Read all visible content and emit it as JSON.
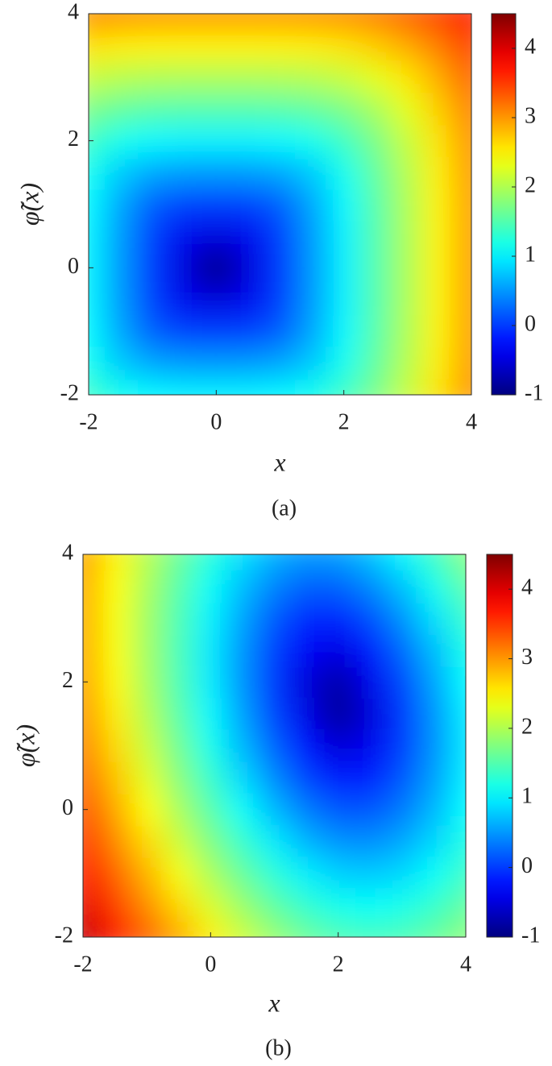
{
  "chart_data": [
    {
      "type": "contour",
      "xlabel": "x",
      "ylabel": "φ̃(x)",
      "caption": "(a)",
      "colormap": "jet",
      "x": [
        -2,
        -1.5,
        -1,
        -0.5,
        0,
        0.5,
        1,
        1.5,
        2,
        2.5,
        3,
        3.5,
        4
      ],
      "y": [
        -2,
        -1.5,
        -1,
        -0.5,
        0,
        0.5,
        1,
        1.5,
        2,
        2.5,
        3,
        3.5,
        4
      ],
      "z": [
        [
          1.38,
          1.14,
          1.03,
          1,
          1,
          1,
          1.03,
          1.14,
          1.38,
          1.72,
          2.14,
          2.59,
          3.06
        ],
        [
          1.14,
          0.78,
          0.57,
          0.51,
          0.5,
          0.51,
          0.57,
          0.78,
          1.14,
          1.58,
          2.05,
          2.53,
          3.02
        ],
        [
          1.03,
          0.57,
          0.19,
          0.02,
          0,
          0.02,
          0.19,
          0.57,
          1.03,
          1.52,
          2.01,
          2.51,
          3
        ],
        [
          1,
          0.51,
          0.02,
          -0.41,
          -0.5,
          -0.41,
          0.02,
          0.51,
          1,
          1.5,
          2,
          2.5,
          3
        ],
        [
          1,
          0.5,
          0,
          -0.5,
          -1,
          -0.5,
          0,
          0.5,
          1,
          1.5,
          2,
          2.5,
          3
        ],
        [
          1,
          0.51,
          0.02,
          -0.41,
          -0.5,
          -0.41,
          0.02,
          0.51,
          1,
          1.5,
          2,
          2.5,
          3
        ],
        [
          1.03,
          0.57,
          0.19,
          0.02,
          0,
          0.02,
          0.19,
          0.57,
          1.03,
          1.52,
          2.01,
          2.51,
          3
        ],
        [
          1.14,
          0.78,
          0.57,
          0.51,
          0.5,
          0.51,
          0.57,
          0.78,
          1.14,
          1.58,
          2.05,
          2.53,
          3.02
        ],
        [
          1.38,
          1.14,
          1.03,
          1,
          1,
          1,
          1.03,
          1.14,
          1.38,
          1.72,
          2.14,
          2.59,
          3.06
        ],
        [
          1.72,
          1.58,
          1.52,
          1.5,
          1.5,
          1.5,
          1.52,
          1.58,
          1.72,
          1.97,
          2.31,
          2.71,
          3.15
        ],
        [
          2.14,
          2.05,
          2.01,
          2,
          2,
          2,
          2.01,
          2.05,
          2.14,
          2.31,
          2.57,
          2.9,
          3.29
        ],
        [
          2.59,
          2.53,
          2.51,
          2.5,
          2.5,
          2.5,
          2.51,
          2.53,
          2.59,
          2.71,
          2.9,
          3.16,
          3.49
        ],
        [
          3.06,
          3.02,
          3,
          3,
          3,
          3,
          3,
          3.02,
          3.06,
          3.15,
          3.29,
          3.49,
          3.76
        ]
      ],
      "xlim": [
        -2,
        4
      ],
      "ylim": [
        -2,
        4
      ],
      "xticks": [
        -2,
        0,
        2,
        4
      ],
      "yticks": [
        -2,
        0,
        2,
        4
      ],
      "clim": [
        -1,
        4.5
      ],
      "cticks": [
        -1,
        0,
        1,
        2,
        3,
        4
      ]
    },
    {
      "type": "contour",
      "xlabel": "x",
      "ylabel": "φ̃(x)",
      "caption": "(b)",
      "colormap": "jet",
      "x": [
        -2,
        -1.5,
        -1,
        -0.5,
        0,
        0.5,
        1,
        1.5,
        2,
        2.5,
        3,
        3.5,
        4
      ],
      "y": [
        -2,
        -1.5,
        -1,
        -0.5,
        0,
        0.5,
        1,
        1.5,
        2,
        2.5,
        3,
        3.5,
        4
      ],
      "z": [
        [
          4.16,
          3.72,
          3.3,
          2.9,
          2.52,
          2.17,
          1.88,
          1.64,
          1.48,
          1.42,
          1.46,
          1.6,
          1.82
        ],
        [
          3.94,
          3.5,
          3.06,
          2.64,
          2.24,
          1.88,
          1.56,
          1.31,
          1.15,
          1.09,
          1.16,
          1.33,
          1.59
        ],
        [
          3.75,
          3.29,
          2.84,
          2.4,
          1.98,
          1.6,
          1.26,
          0.98,
          0.81,
          0.77,
          0.86,
          1.08,
          1.38
        ],
        [
          3.56,
          3.09,
          2.63,
          2.17,
          1.74,
          1.33,
          0.96,
          0.66,
          0.48,
          0.45,
          0.59,
          0.85,
          1.2
        ],
        [
          3.4,
          2.92,
          2.44,
          1.97,
          1.51,
          1.08,
          0.68,
          0.35,
          0.14,
          0.14,
          0.34,
          0.67,
          1.07
        ],
        [
          3.25,
          2.76,
          2.28,
          1.79,
          1.32,
          0.85,
          0.42,
          0.04,
          -0.19,
          -0.15,
          0.14,
          0.54,
          0.98
        ],
        [
          3.13,
          2.63,
          2.14,
          1.65,
          1.15,
          0.67,
          0.2,
          -0.24,
          -0.53,
          -0.4,
          0.0,
          0.47,
          0.95
        ],
        [
          3.03,
          2.53,
          2.03,
          1.53,
          1.03,
          0.54,
          0.04,
          -0.45,
          -0.87,
          -0.51,
          -0.02,
          0.48,
          0.97
        ],
        [
          2.96,
          2.46,
          1.96,
          1.46,
          0.96,
          0.47,
          -0.03,
          -0.51,
          -0.8,
          -0.42,
          0.06,
          0.56,
          1.05
        ],
        [
          2.92,
          2.42,
          1.93,
          1.44,
          0.95,
          0.48,
          0.02,
          -0.35,
          -0.46,
          -0.19,
          0.24,
          0.7,
          1.18
        ],
        [
          2.9,
          2.41,
          1.93,
          1.46,
          1.0,
          0.56,
          0.17,
          -0.1,
          -0.13,
          0.1,
          0.47,
          0.9,
          1.35
        ],
        [
          2.91,
          2.44,
          1.97,
          1.52,
          1.09,
          0.7,
          0.39,
          0.2,
          0.21,
          0.41,
          0.73,
          1.13,
          1.56
        ],
        [
          2.95,
          2.49,
          2.05,
          1.63,
          1.24,
          0.9,
          0.64,
          0.51,
          0.54,
          0.73,
          1.02,
          1.38,
          1.79
        ]
      ],
      "xlim": [
        -2,
        4
      ],
      "ylim": [
        -2,
        4
      ],
      "xticks": [
        -2,
        0,
        2,
        4
      ],
      "yticks": [
        -2,
        0,
        2,
        4
      ],
      "clim": [
        -1,
        4.5
      ],
      "cticks": [
        -1,
        0,
        1,
        2,
        3,
        4
      ]
    }
  ]
}
